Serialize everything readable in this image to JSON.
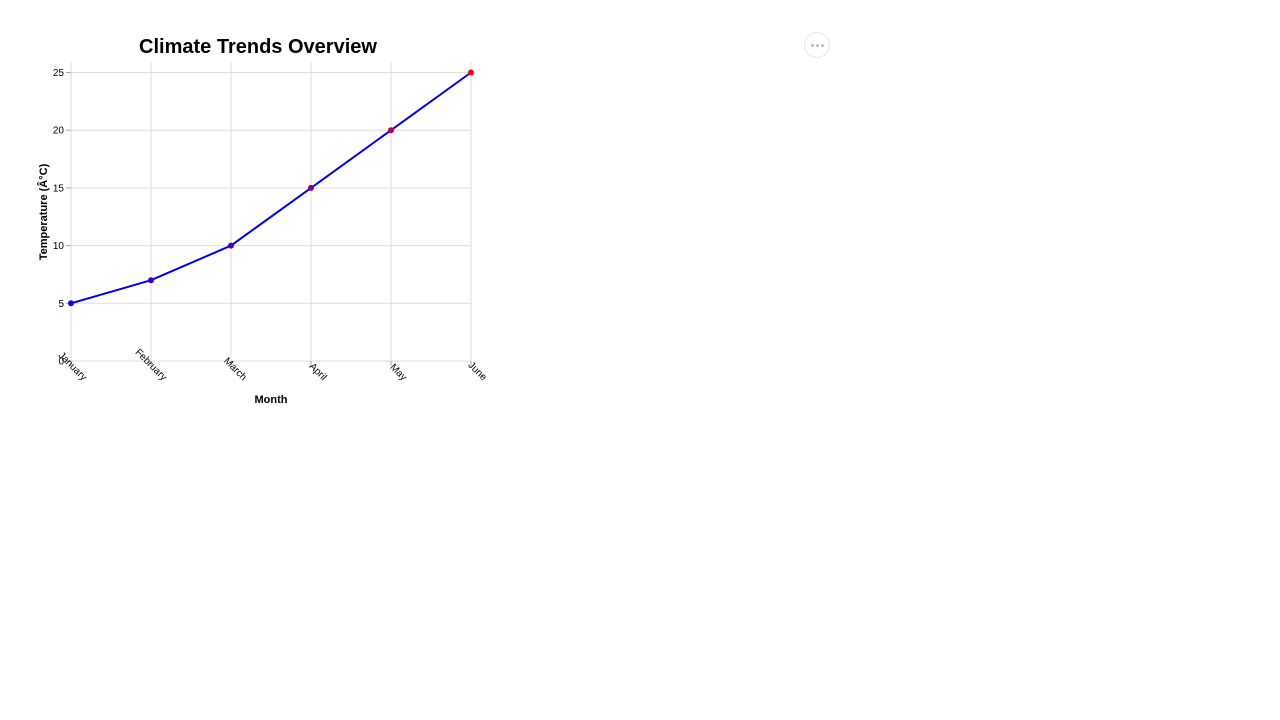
{
  "chart_data": {
    "type": "line",
    "title": "Climate Trends Overview",
    "xlabel": "Month",
    "ylabel": "Temperature (Â°C)",
    "categories": [
      "January",
      "February",
      "March",
      "April",
      "May",
      "June"
    ],
    "series": [
      {
        "values": [
          5,
          7,
          10,
          15,
          20,
          25
        ],
        "line_color": "#0000e6",
        "point_colors": [
          "#1a00e6",
          "#3300cc",
          "#4d00b3",
          "#800080",
          "#b3004d",
          "#ff0000"
        ]
      }
    ],
    "yticks": [
      0,
      5,
      10,
      15,
      20,
      25
    ],
    "ylim": [
      0,
      26
    ],
    "grid": true,
    "legend": "none"
  },
  "toolbar": {
    "menu_icon": "more-horizontal-icon"
  }
}
